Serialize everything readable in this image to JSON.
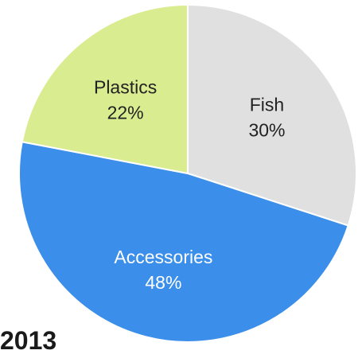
{
  "chart_data": {
    "type": "pie",
    "title": "2013",
    "slices": [
      {
        "name": "Fish",
        "value": 30,
        "label": "30%",
        "color": "#e0e0e0",
        "label_color": "#222222"
      },
      {
        "name": "Accessories",
        "value": 48,
        "label": "48%",
        "color": "#3b8eea",
        "label_color": "#ffffff"
      },
      {
        "name": "Plastics",
        "value": 22,
        "label": "22%",
        "color": "#d9ec90",
        "label_color": "#222222"
      }
    ],
    "start_angle_deg": 0,
    "direction": "clockwise",
    "edge_color": "#ffffff"
  }
}
